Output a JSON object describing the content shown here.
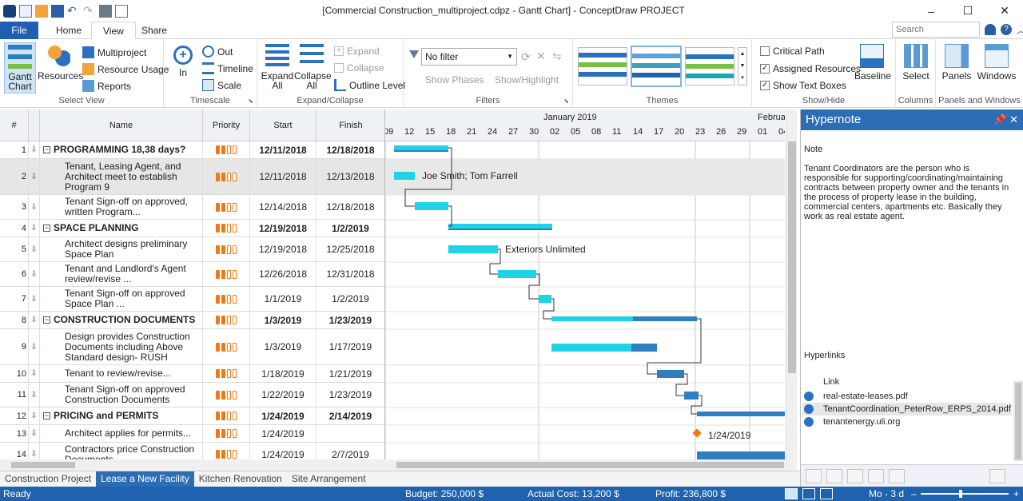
{
  "window": {
    "title": "[Commercial Construction_multiproject.cdpz - Gantt Chart] - ConceptDraw PROJECT",
    "controls": [
      "–",
      "☐",
      "✕"
    ]
  },
  "ribbon_tabs": {
    "file": "File",
    "tabs": [
      "Home",
      "View",
      "Share"
    ],
    "active": "View",
    "search_placeholder": "Search"
  },
  "ribbon": {
    "select_view": {
      "label": "Select View",
      "gantt_chart": "Gantt\nChart",
      "resources": "Resources",
      "multiproject": "Multiproject",
      "resource_usage": "Resource Usage",
      "reports": "Reports"
    },
    "timescale": {
      "label": "Timescale",
      "zoom_in": "In",
      "zoom_out": "Out",
      "timeline": "Timeline",
      "scale": "Scale"
    },
    "expand_collapse": {
      "label": "Expand/Collapse",
      "expand_all": "Expand\nAll",
      "collapse_all": "Collapse\nAll",
      "expand": "Expand",
      "collapse": "Collapse",
      "outline_level": "Outline Level"
    },
    "filters": {
      "label": "Filters",
      "filter_value": "No filter",
      "show_phases": "Show Phases",
      "show_highlight": "Show/Highlight"
    },
    "themes": {
      "label": "Themes"
    },
    "show_hide": {
      "label": "Show/Hide",
      "critical_path": "Critical Path",
      "assigned_resources": "Assigned Resources",
      "show_text_boxes": "Show Text Boxes",
      "critical_path_checked": false,
      "assigned_resources_checked": true,
      "show_text_boxes_checked": true,
      "baseline": "Baseline"
    },
    "columns": {
      "label": "Columns",
      "select": "Select"
    },
    "panels_windows": {
      "label": "Panels and Windows",
      "panels": "Panels",
      "windows": "Windows"
    }
  },
  "grid": {
    "headers": {
      "num": "#",
      "name": "Name",
      "priority": "Priority",
      "start": "Start",
      "finish": "Finish"
    },
    "rows": [
      {
        "num": "1",
        "name": "PROGRAMMING 18,38 days?",
        "start": "12/11/2018",
        "finish": "12/18/2018",
        "summary": true
      },
      {
        "num": "2",
        "name": "Tenant, Leasing Agent, and Architect meet to establish Program 9",
        "start": "12/11/2018",
        "finish": "12/13/2018",
        "selected": true
      },
      {
        "num": "3",
        "name": "Tenant Sign-off on approved, written Program...",
        "start": "12/14/2018",
        "finish": "12/18/2018"
      },
      {
        "num": "4",
        "name": "SPACE PLANNING",
        "start": "12/19/2018",
        "finish": "1/2/2019",
        "summary": true
      },
      {
        "num": "5",
        "name": "Architect designs preliminary Space Plan",
        "start": "12/19/2018",
        "finish": "12/25/2018"
      },
      {
        "num": "6",
        "name": "Tenant and Landlord's Agent review/revise ...",
        "start": "12/26/2018",
        "finish": "12/31/2018"
      },
      {
        "num": "7",
        "name": "Tenant Sign-off on approved Space Plan ...",
        "start": "1/1/2019",
        "finish": "1/2/2019"
      },
      {
        "num": "8",
        "name": "CONSTRUCTION DOCUMENTS",
        "start": "1/3/2019",
        "finish": "1/23/2019",
        "summary": true
      },
      {
        "num": "9",
        "name": "Design provides Construction Documents including Above Standard design- RUSH",
        "start": "1/3/2019",
        "finish": "1/17/2019"
      },
      {
        "num": "10",
        "name": "Tenant to review/revise...",
        "start": "1/18/2019",
        "finish": "1/21/2019"
      },
      {
        "num": "11",
        "name": "Tenant Sign-off on approved Construction Documents",
        "start": "1/22/2019",
        "finish": "1/23/2019"
      },
      {
        "num": "12",
        "name": "PRICING and PERMITS",
        "start": "1/24/2019",
        "finish": "2/14/2019",
        "summary": true
      },
      {
        "num": "13",
        "name": "Architect applies for permits...",
        "start": "1/24/2019",
        "finish": ""
      },
      {
        "num": "14",
        "name": "Contractors price Construction Documents",
        "start": "1/24/2019",
        "finish": "2/7/2019"
      }
    ]
  },
  "timescale": {
    "month_labels": [
      "January 2019",
      "Februar"
    ],
    "days": [
      "09",
      "12",
      "15",
      "18",
      "21",
      "24",
      "27",
      "30",
      "02",
      "05",
      "08",
      "11",
      "14",
      "17",
      "20",
      "23",
      "26",
      "29",
      "01",
      "04"
    ]
  },
  "chart_labels": {
    "row2": "Joe Smith; Tom Farrell",
    "row5": "Exteriors Unlimited",
    "row13": "1/24/2019"
  },
  "colors": {
    "bar_light": "#1fd3e6",
    "bar_dark": "#2f7fc0",
    "milestone": "#f07a10",
    "accent": "#1f62ad",
    "priority": "#f07a10"
  },
  "hypernote": {
    "title": "Hypernote",
    "note_label": "Note",
    "note_text": "Tenant Coordinators are the person who is responsible for supporting/coordinating/maintaining contracts between property owner and the tenants in the process of property lease in the building, commercial centers, apartments etc. Basically they work as real estate agent.",
    "hyperlinks_label": "Hyperlinks",
    "link_header": "Link",
    "links": [
      "real-estate-leases.pdf",
      "TenantCoordination_PeterRow_ERPS_2014.pdf",
      "tenantenergy.uli.org"
    ]
  },
  "sheets": [
    "Construction Project",
    "Lease a New Facility",
    "Kitchen Renovation",
    "Site Arrangement"
  ],
  "active_sheet": "Lease a New Facility",
  "status": {
    "ready": "Ready",
    "budget": "Budget: 250,000 $",
    "actual_cost": "Actual Cost: 13,200 $",
    "profit": "Profit: 236,800 $",
    "zoom": "Mo - 3 d"
  }
}
